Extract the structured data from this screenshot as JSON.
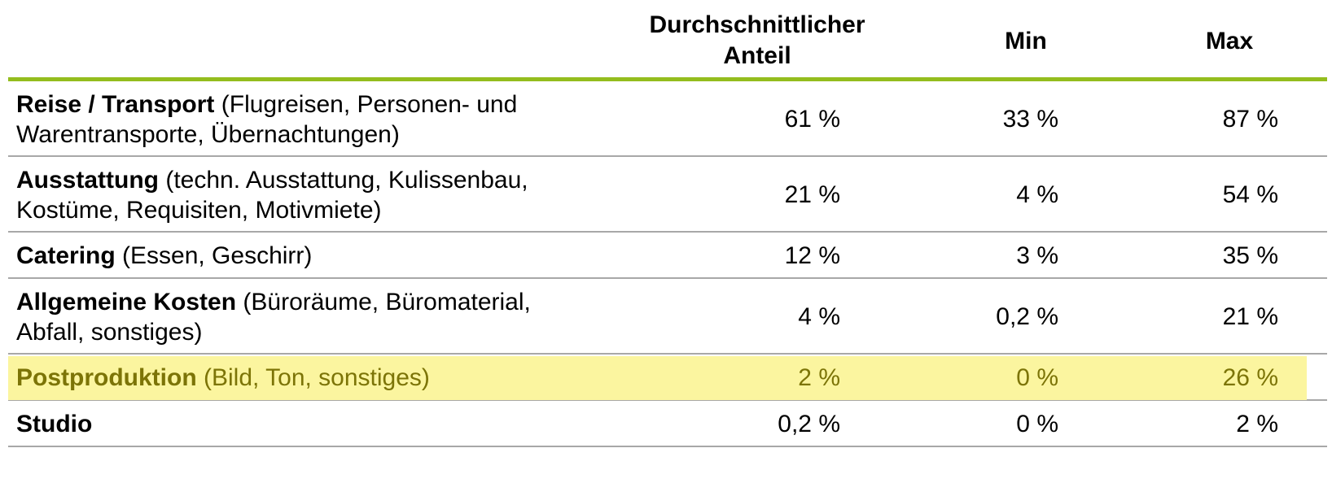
{
  "table": {
    "columns": [
      "Durchschnittlicher Anteil",
      "Min",
      "Max"
    ],
    "column_lines": [
      [
        "Durchschnittlicher",
        "Anteil"
      ],
      [
        "Min"
      ],
      [
        "Max"
      ]
    ],
    "rows": [
      {
        "name": "Reise / Transport",
        "detail_lines": [
          " (Flugreisen, Personen- und",
          "Warentransporte, Übernachtungen)"
        ],
        "avg": "61 %",
        "min": "33 %",
        "max": "87 %"
      },
      {
        "name": "Ausstattung",
        "detail_lines": [
          " (techn. Ausstattung, Kulissenbau,",
          "Kostüme, Requisiten, Motivmiete)"
        ],
        "avg": "21 %",
        "min": "4 %",
        "max": "54 %"
      },
      {
        "name": "Catering",
        "detail_lines": [
          " (Essen, Geschirr)"
        ],
        "avg": "12 %",
        "min": "3 %",
        "max": "35 %"
      },
      {
        "name": "Allgemeine Kosten",
        "detail_lines": [
          " (Büroräume, Büromaterial,",
          "Abfall, sonstiges)"
        ],
        "avg": "4 %",
        "min": "0,2 %",
        "max": "21 %"
      },
      {
        "name": "Postproduktion",
        "detail_lines": [
          " (Bild, Ton, sonstiges)"
        ],
        "avg": "2 %",
        "min": "0 %",
        "max": "26 %",
        "highlighted": true
      },
      {
        "name": "Studio",
        "detail_lines": [
          ""
        ],
        "avg": "0,2 %",
        "min": "0 %",
        "max": "2 %"
      }
    ]
  },
  "colors": {
    "accent_line": "#94bd1e",
    "highlight_bg": "#fbf59f",
    "highlight_text": "#7c7407",
    "row_border": "#a8a8a8"
  },
  "chart_data": {
    "type": "table",
    "columns": [
      "Durchschnittlicher Anteil",
      "Min",
      "Max"
    ],
    "row_labels": [
      "Reise / Transport (Flugreisen, Personen- und Warentransporte, Übernachtungen)",
      "Ausstattung (techn. Ausstattung, Kulissenbau, Kostüme, Requisiten, Motivmiete)",
      "Catering (Essen, Geschirr)",
      "Allgemeine Kosten (Büroräume, Büromaterial, Abfall, sonstiges)",
      "Postproduktion (Bild, Ton, sonstiges)",
      "Studio"
    ],
    "values": [
      [
        61,
        33,
        87
      ],
      [
        21,
        4,
        54
      ],
      [
        12,
        3,
        35
      ],
      [
        4,
        0.2,
        21
      ],
      [
        2,
        0,
        26
      ],
      [
        0.2,
        0,
        2
      ]
    ],
    "unit": "%",
    "highlighted_row": "Postproduktion (Bild, Ton, sonstiges)"
  }
}
